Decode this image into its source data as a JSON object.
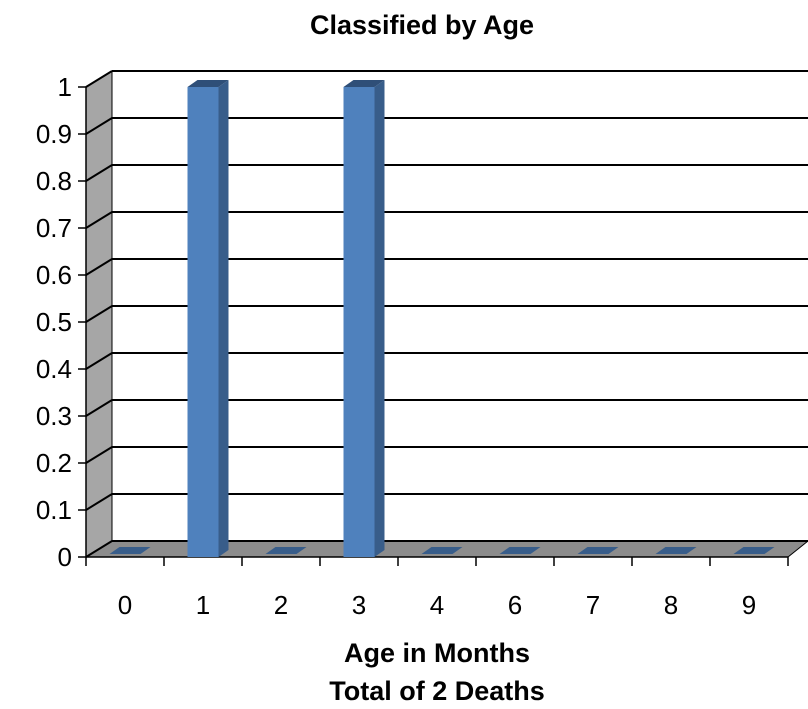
{
  "chart_data": {
    "type": "bar",
    "title": "Classified by Age",
    "xlabel": "Age in Months",
    "subtitle": "Total of 2 Deaths",
    "categories": [
      "0",
      "1",
      "2",
      "3",
      "4",
      "6",
      "7",
      "8",
      "9"
    ],
    "values": [
      0,
      1,
      0,
      1,
      0,
      0,
      0,
      0,
      0
    ],
    "ylim": [
      0,
      1
    ],
    "yticks": [
      "0",
      "0.1",
      "0.2",
      "0.3",
      "0.4",
      "0.5",
      "0.6",
      "0.7",
      "0.8",
      "0.9",
      "1"
    ],
    "grid": true,
    "style": "3d-column",
    "colors": {
      "bar_front": "#4f81bd",
      "bar_side": "#385d8a",
      "bar_top": "#2f4f78",
      "wall": "#a6a6a6",
      "floor": "#8c8c8c",
      "grid": "#000000"
    }
  }
}
